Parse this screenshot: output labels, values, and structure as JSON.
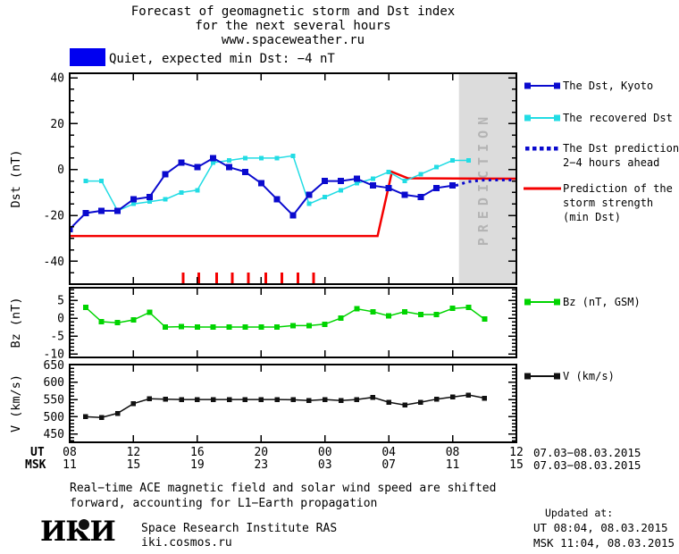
{
  "title": {
    "line1": "Forecast of geomagnetic storm and Dst index",
    "line2": "for the next several hours",
    "line3": "www.spaceweather.ru"
  },
  "status": {
    "label": "Quiet, expected min Dst: −4 nT",
    "swatch_color": "#0000f0",
    "swatch_style": "background:#0000f0"
  },
  "colors": {
    "dst_kyoto": "#0a0ace",
    "recovered_dst": "#22dce4",
    "prediction_red": "#f40000",
    "bz_green": "#00d400",
    "v_black": "#111111",
    "prediction_band": "#dcdcdc",
    "prediction_band_text": "#b4b4b4"
  },
  "chart_data": [
    {
      "type": "line",
      "panel": "dst",
      "title": "Dst index: observed, recovered and predicted",
      "ylabel": "Dst (nT)",
      "ylim": [
        -50,
        42
      ],
      "yticks": [
        40,
        20,
        0,
        -20,
        -40
      ],
      "ytick_minor_step": 5,
      "xlim": [
        0,
        28
      ],
      "xticks_hours": [
        0,
        4,
        8,
        12,
        16,
        20,
        24,
        28
      ],
      "x_unit": "hours since 07.03.2015 08:00 UT",
      "grid": false,
      "prediction_band": {
        "x_start": 24.4,
        "x_end": 28,
        "label": "PREDICTION"
      },
      "storm_marks": {
        "color": "#f40000",
        "x": [
          7.1,
          8.1,
          9.2,
          10.2,
          11.2,
          12.3,
          13.3,
          14.3,
          15.3
        ],
        "y_top": -45,
        "y_bottom": -50
      },
      "series": [
        {
          "name": "The Dst, Kyoto",
          "color": "#0a0ace",
          "style": "solid",
          "marker": "square",
          "marker_size": 7,
          "line_width": 2,
          "x": [
            0,
            1,
            2,
            3,
            4,
            5,
            6,
            7,
            8,
            9,
            10,
            11,
            12,
            13,
            14,
            15,
            16,
            17,
            18,
            19,
            20,
            21,
            22,
            23,
            24
          ],
          "y": [
            -26,
            -19,
            -18,
            -18,
            -13,
            -12,
            -2,
            3,
            1,
            5,
            1,
            -1,
            -6,
            -13,
            -20,
            -11,
            -5,
            -5,
            -4,
            -7,
            -8,
            -11,
            -12,
            -8,
            -7
          ]
        },
        {
          "name": "The recovered Dst",
          "color": "#22dce4",
          "style": "solid",
          "marker": "square",
          "marker_size": 5,
          "line_width": 1.5,
          "x": [
            1,
            2,
            3,
            4,
            5,
            6,
            7,
            8,
            9,
            10,
            11,
            12,
            13,
            14,
            15,
            16,
            17,
            18,
            19,
            20,
            21,
            22,
            23,
            24,
            25
          ],
          "y": [
            -5,
            -5,
            -18,
            -15,
            -14,
            -13,
            -10,
            -9,
            3,
            4,
            5,
            5,
            5,
            6,
            -15,
            -12,
            -9,
            -6,
            -4,
            -1,
            -5,
            -2,
            1,
            4,
            4
          ]
        },
        {
          "name": "The Dst prediction 2−4 hours ahead",
          "color": "#0a0ace",
          "style": "dotted",
          "marker": "none",
          "marker_size": 0,
          "line_width": 3,
          "x": [
            24.2,
            25,
            26,
            28
          ],
          "y": [
            -7,
            -5.3,
            -4.6,
            -4.6
          ]
        },
        {
          "name": "Prediction of the storm strength (min Dst)",
          "color": "#f40000",
          "style": "solid",
          "marker": "none",
          "marker_size": 0,
          "line_width": 2.5,
          "x": [
            0,
            19.3,
            20.2,
            21.2,
            28
          ],
          "y": [
            -29,
            -29,
            -1,
            -3.8,
            -4
          ]
        }
      ]
    },
    {
      "type": "line",
      "panel": "bz",
      "ylabel": "Bz (nT)",
      "legend_label": "Bz (nT, GSM)",
      "ylim": [
        -11,
        8.5
      ],
      "yticks": [
        5,
        0,
        -5,
        -10
      ],
      "ytick_minor_step": 1,
      "xlim": [
        0,
        28
      ],
      "xticks_hours": [
        0,
        4,
        8,
        12,
        16,
        20,
        24,
        28
      ],
      "grid": false,
      "series": [
        {
          "name": "Bz (nT, GSM)",
          "color": "#00d400",
          "style": "solid",
          "marker": "square",
          "marker_size": 6,
          "line_width": 1.5,
          "x": [
            1,
            2,
            3,
            4,
            5,
            6,
            7,
            8,
            9,
            10,
            11,
            12,
            13,
            14,
            15,
            16,
            17,
            18,
            19,
            20,
            21,
            22,
            23,
            24,
            25,
            26
          ],
          "y": [
            3,
            -1,
            -1.3,
            -0.5,
            1.6,
            -2.5,
            -2.4,
            -2.5,
            -2.5,
            -2.5,
            -2.5,
            -2.5,
            -2.5,
            -2.1,
            -2.1,
            -1.7,
            0,
            2.6,
            1.8,
            0.6,
            1.8,
            1,
            1,
            2.7,
            3,
            -0.3
          ]
        }
      ]
    },
    {
      "type": "line",
      "panel": "v",
      "ylabel": "V (km/s)",
      "legend_label": "V (km/s)",
      "ylim": [
        426,
        651
      ],
      "yticks": [
        650,
        600,
        550,
        500,
        450
      ],
      "ytick_minor_step": 10,
      "xlim": [
        0,
        28
      ],
      "xticks_hours": [
        0,
        4,
        8,
        12,
        16,
        20,
        24,
        28
      ],
      "grid": false,
      "series": [
        {
          "name": "V (km/s)",
          "color": "#111111",
          "style": "solid",
          "marker": "square",
          "marker_size": 5.5,
          "line_width": 1.5,
          "x": [
            1,
            2,
            3,
            4,
            5,
            6,
            7,
            8,
            9,
            10,
            11,
            12,
            13,
            14,
            15,
            16,
            17,
            18,
            19,
            20,
            21,
            22,
            23,
            24,
            25,
            26
          ],
          "y": [
            500,
            498,
            510,
            538,
            552,
            551,
            550,
            550,
            550,
            550,
            550,
            550,
            550,
            549,
            547,
            550,
            547,
            550,
            556,
            542,
            534,
            542,
            551,
            557,
            563,
            554
          ]
        }
      ]
    }
  ],
  "legend_dst": [
    {
      "label": "The Dst, Kyoto",
      "color": "#0a0ace",
      "style": "squares"
    },
    {
      "label": "The recovered Dst",
      "color": "#22dce4",
      "style": "squares"
    },
    {
      "label": "The Dst prediction",
      "label2": "2−4 hours ahead",
      "color": "#0a0ace",
      "style": "dotted"
    },
    {
      "label": "Prediction of the",
      "label2": "storm strength",
      "label3": "(min Dst)",
      "color": "#f40000",
      "style": "line"
    }
  ],
  "legend_bz": {
    "label": "Bz (nT, GSM)",
    "color": "#00d400",
    "style": "squares"
  },
  "legend_v": {
    "label": "V (km/s)",
    "color": "#111111",
    "style": "squares"
  },
  "xaxis": {
    "ut_label": "UT",
    "msk_label": "MSK",
    "tick_hours": [
      0,
      4,
      8,
      12,
      16,
      20,
      24,
      28
    ],
    "ut_values": [
      "08",
      "12",
      "16",
      "20",
      "00",
      "04",
      "08",
      "12"
    ],
    "msk_values": [
      "11",
      "15",
      "19",
      "23",
      "03",
      "07",
      "11",
      "15"
    ],
    "ut_date_range": "07.03−08.03.2015",
    "msk_date_range": "07.03−08.03.2015"
  },
  "footnote": {
    "line1": "Real−time ACE magnetic field and solar wind speed are shifted",
    "line2": "forward, accounting for L1−Earth propagation"
  },
  "footer": {
    "logo_text": "ИКИ",
    "institute": "Space Research Institute RAS",
    "website": "iki.cosmos.ru",
    "updated_label": "Updated at:",
    "updated_ut": "UT  08:04, 08.03.2015",
    "updated_msk": "MSK 11:04, 08.03.2015"
  }
}
